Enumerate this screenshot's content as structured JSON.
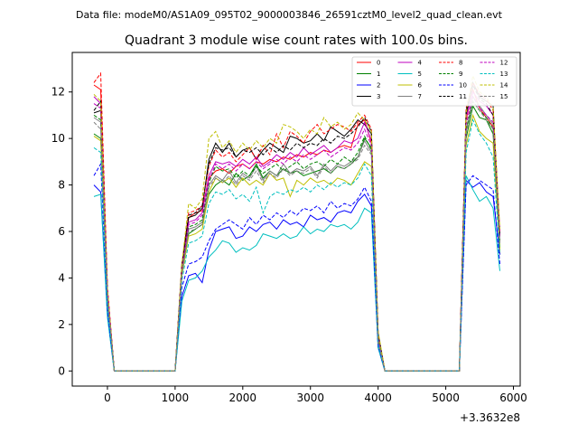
{
  "figure": {
    "suptitle": "Data file: modeM0/AS1A09_095T02_9000003846_26591cztM0_level2_quad_clean.evt"
  },
  "chart_data": {
    "type": "line",
    "title": "Quadrant 3 module wise count rates with 100.0s bins.",
    "xlabel": "",
    "ylabel": "",
    "x_offset_label": "+3.3632e8",
    "xlim": [
      -520,
      6100
    ],
    "ylim": [
      -0.65,
      13.7
    ],
    "x_ticks": [
      0,
      1000,
      2000,
      3000,
      4000,
      5000,
      6000
    ],
    "y_ticks": [
      0,
      2,
      4,
      6,
      8,
      10,
      12
    ],
    "grid": false,
    "legend_position": "top-right",
    "legend_columns": 4,
    "x": [
      -200,
      -100,
      0,
      100,
      1000,
      1100,
      1200,
      1300,
      1400,
      1500,
      1600,
      1700,
      1800,
      1900,
      2000,
      2100,
      2200,
      2300,
      2400,
      2500,
      2600,
      2700,
      2800,
      2900,
      3000,
      3100,
      3200,
      3300,
      3400,
      3500,
      3600,
      3700,
      3800,
      3900,
      4000,
      4100,
      5200,
      5300,
      5400,
      5500,
      5600,
      5700,
      5800
    ],
    "series": [
      {
        "name": "0",
        "color": "#ff0000",
        "dashed": false,
        "values": [
          12.3,
          12.1,
          3.5,
          0,
          0,
          4.5,
          6.6,
          6.8,
          6.9,
          8.3,
          8.6,
          8.7,
          8.5,
          8.8,
          8.9,
          8.7,
          9.0,
          8.9,
          9.1,
          9.0,
          9.2,
          9.1,
          9.3,
          9.2,
          9.4,
          9.3,
          9.5,
          9.4,
          9.6,
          9.7,
          9.6,
          10.6,
          10.8,
          9.8,
          1.5,
          0,
          0,
          10.8,
          12.1,
          11.3,
          10.9,
          10.5,
          5.0
        ]
      },
      {
        "name": "1",
        "color": "#008000",
        "dashed": false,
        "values": [
          10.2,
          10.0,
          3.0,
          0,
          0,
          4.2,
          5.9,
          6.1,
          6.3,
          7.6,
          8.0,
          8.2,
          8.0,
          8.5,
          8.2,
          8.4,
          8.9,
          8.3,
          8.6,
          8.4,
          8.7,
          8.5,
          8.6,
          8.4,
          8.5,
          8.6,
          8.7,
          8.5,
          8.8,
          8.7,
          8.9,
          9.2,
          10.0,
          9.6,
          1.2,
          0,
          0,
          10.0,
          11.4,
          10.9,
          10.8,
          10.2,
          5.3
        ]
      },
      {
        "name": "2",
        "color": "#0000ff",
        "dashed": false,
        "values": [
          8.0,
          7.7,
          2.4,
          0,
          0,
          3.2,
          4.1,
          4.2,
          3.8,
          5.2,
          6.0,
          6.1,
          6.2,
          5.7,
          5.8,
          6.2,
          6.0,
          6.3,
          6.4,
          6.1,
          6.5,
          6.3,
          6.4,
          6.2,
          6.7,
          6.5,
          6.6,
          6.4,
          6.8,
          6.9,
          6.8,
          7.3,
          7.6,
          7.1,
          1.0,
          0,
          0,
          8.2,
          7.9,
          8.1,
          7.7,
          7.5,
          5.0
        ]
      },
      {
        "name": "3",
        "color": "#000000",
        "dashed": false,
        "values": [
          11.1,
          11.2,
          3.4,
          0,
          0,
          4.6,
          6.6,
          6.7,
          7.0,
          9.1,
          9.8,
          9.4,
          9.8,
          9.2,
          9.5,
          9.6,
          9.1,
          9.5,
          9.8,
          9.6,
          9.4,
          10.1,
          10.0,
          9.8,
          9.9,
          10.2,
          9.9,
          10.5,
          10.3,
          10.1,
          10.4,
          10.8,
          10.6,
          10.2,
          1.6,
          0,
          0,
          11.0,
          12.4,
          11.8,
          11.6,
          11.4,
          5.8
        ]
      },
      {
        "name": "4",
        "color": "#bf00bf",
        "dashed": false,
        "values": [
          11.8,
          11.5,
          3.5,
          0,
          0,
          4.4,
          6.4,
          6.5,
          6.8,
          8.4,
          9.0,
          8.9,
          9.0,
          8.8,
          9.1,
          8.9,
          9.2,
          8.8,
          9.0,
          9.3,
          9.1,
          9.4,
          9.2,
          9.6,
          9.3,
          9.5,
          9.7,
          9.4,
          9.6,
          9.9,
          9.8,
          10.0,
          10.7,
          9.9,
          1.4,
          0,
          0,
          10.9,
          12.0,
          11.6,
          11.4,
          11.0,
          6.0
        ]
      },
      {
        "name": "5",
        "color": "#00bfbf",
        "dashed": false,
        "values": [
          7.5,
          7.6,
          2.3,
          0,
          0,
          3.0,
          3.9,
          4.0,
          4.3,
          4.9,
          5.2,
          5.6,
          5.5,
          5.1,
          5.3,
          5.2,
          5.4,
          5.9,
          5.8,
          5.7,
          5.9,
          5.7,
          5.8,
          6.2,
          5.9,
          6.1,
          6.0,
          6.3,
          6.2,
          6.3,
          6.1,
          6.4,
          7.0,
          6.8,
          1.0,
          0,
          0,
          8.4,
          7.8,
          7.3,
          7.5,
          7.0,
          4.3
        ]
      },
      {
        "name": "6",
        "color": "#bfbf00",
        "dashed": false,
        "values": [
          10.1,
          9.9,
          3.1,
          0,
          0,
          4.1,
          5.8,
          5.9,
          6.1,
          7.7,
          8.3,
          8.1,
          8.3,
          7.9,
          8.3,
          8.0,
          8.2,
          8.0,
          8.5,
          8.2,
          8.3,
          7.5,
          8.2,
          8.0,
          8.3,
          8.1,
          8.2,
          8.0,
          8.3,
          8.2,
          8.0,
          8.5,
          9.0,
          8.8,
          1.2,
          0,
          0,
          9.7,
          11.0,
          10.3,
          10.0,
          9.8,
          5.2
        ]
      },
      {
        "name": "7",
        "color": "#808080",
        "dashed": false,
        "values": [
          10.9,
          10.7,
          3.3,
          0,
          0,
          4.3,
          6.1,
          6.2,
          6.4,
          8.0,
          8.4,
          8.2,
          8.6,
          8.1,
          8.5,
          8.3,
          8.8,
          8.2,
          8.6,
          8.4,
          8.9,
          8.5,
          8.7,
          8.6,
          8.8,
          8.4,
          8.9,
          8.6,
          8.9,
          8.8,
          9.0,
          9.2,
          9.9,
          9.4,
          1.3,
          0,
          0,
          10.3,
          11.8,
          11.4,
          11.0,
          10.6,
          5.6
        ]
      },
      {
        "name": "8",
        "color": "#ff0000",
        "dashed": true,
        "values": [
          12.4,
          12.8,
          3.6,
          0,
          0,
          4.6,
          6.8,
          6.9,
          7.1,
          8.8,
          9.5,
          9.2,
          9.4,
          9.0,
          9.3,
          9.6,
          9.1,
          9.7,
          9.3,
          10.2,
          9.6,
          10.3,
          10.1,
          9.8,
          10.3,
          10.6,
          10.2,
          10.4,
          10.6,
          10.5,
          10.3,
          10.7,
          11.0,
          10.4,
          1.6,
          0,
          0,
          11.3,
          12.4,
          11.9,
          11.7,
          11.2,
          5.9
        ]
      },
      {
        "name": "9",
        "color": "#008000",
        "dashed": true,
        "values": [
          11.0,
          10.8,
          3.3,
          0,
          0,
          4.3,
          6.2,
          6.3,
          6.5,
          8.1,
          8.8,
          8.6,
          8.7,
          8.3,
          8.6,
          8.4,
          8.8,
          8.5,
          8.7,
          8.9,
          8.6,
          8.8,
          9.0,
          8.7,
          8.9,
          9.0,
          8.8,
          9.1,
          8.9,
          9.2,
          9.0,
          9.4,
          10.1,
          9.5,
          1.4,
          0,
          0,
          10.4,
          11.6,
          11.2,
          10.9,
          10.4,
          5.5
        ]
      },
      {
        "name": "10",
        "color": "#0000ff",
        "dashed": true,
        "values": [
          8.4,
          8.9,
          2.6,
          0,
          0,
          3.6,
          4.6,
          4.7,
          4.9,
          5.6,
          6.1,
          6.3,
          6.5,
          6.3,
          6.1,
          6.6,
          6.3,
          6.7,
          6.5,
          6.8,
          6.6,
          6.9,
          6.7,
          7.0,
          6.9,
          7.1,
          6.8,
          7.3,
          7.0,
          7.2,
          7.1,
          7.4,
          7.9,
          7.3,
          1.1,
          0,
          0,
          8.0,
          8.4,
          8.2,
          8.0,
          7.8,
          4.6
        ]
      },
      {
        "name": "11",
        "color": "#000000",
        "dashed": true,
        "values": [
          11.2,
          11.6,
          3.4,
          0,
          0,
          4.5,
          6.7,
          6.8,
          7.1,
          8.9,
          9.6,
          9.5,
          9.6,
          9.2,
          9.5,
          9.4,
          9.6,
          9.3,
          9.6,
          9.4,
          9.7,
          9.5,
          9.8,
          9.6,
          9.8,
          9.7,
          10.0,
          9.8,
          10.1,
          10.0,
          10.2,
          10.5,
          10.9,
          10.3,
          1.6,
          0,
          0,
          11.2,
          12.3,
          11.7,
          11.5,
          11.0,
          5.8
        ]
      },
      {
        "name": "12",
        "color": "#bf00bf",
        "dashed": true,
        "values": [
          11.5,
          11.3,
          3.4,
          0,
          0,
          4.3,
          6.3,
          6.4,
          6.7,
          8.2,
          8.9,
          8.7,
          8.9,
          8.6,
          8.9,
          8.7,
          9.0,
          8.7,
          8.9,
          9.1,
          8.9,
          9.2,
          9.0,
          9.3,
          9.1,
          9.3,
          9.5,
          9.2,
          9.4,
          9.6,
          9.5,
          9.8,
          10.4,
          9.7,
          1.4,
          0,
          0,
          10.6,
          11.8,
          11.3,
          11.0,
          10.7,
          5.7
        ]
      },
      {
        "name": "13",
        "color": "#00bfbf",
        "dashed": true,
        "values": [
          9.6,
          9.4,
          2.9,
          0,
          0,
          3.9,
          5.5,
          5.6,
          5.8,
          7.2,
          7.7,
          7.6,
          7.8,
          7.4,
          7.6,
          7.3,
          7.9,
          6.8,
          7.5,
          7.7,
          7.6,
          7.8,
          7.7,
          7.9,
          7.7,
          8.0,
          7.8,
          8.1,
          7.9,
          8.1,
          8.0,
          8.3,
          8.9,
          8.4,
          1.2,
          0,
          0,
          9.4,
          10.8,
          10.2,
          9.8,
          9.2,
          5.0
        ]
      },
      {
        "name": "14",
        "color": "#bfbf00",
        "dashed": true,
        "values": [
          11.9,
          11.6,
          3.5,
          0,
          0,
          4.6,
          7.2,
          7.0,
          7.4,
          10.0,
          10.3,
          9.6,
          9.9,
          9.4,
          9.8,
          9.5,
          9.9,
          9.6,
          10.0,
          9.8,
          10.6,
          10.5,
          10.3,
          10.0,
          10.4,
          10.2,
          10.9,
          10.5,
          10.7,
          10.4,
          10.6,
          11.1,
          10.8,
          10.3,
          1.7,
          0,
          0,
          11.1,
          12.7,
          12.0,
          11.8,
          11.3,
          6.1
        ]
      },
      {
        "name": "15",
        "color": "#808080",
        "dashed": true,
        "values": [
          10.7,
          10.4,
          3.2,
          0,
          0,
          4.2,
          6.0,
          6.1,
          6.3,
          7.9,
          8.3,
          8.1,
          8.4,
          8.0,
          8.4,
          8.2,
          8.6,
          8.1,
          8.5,
          8.3,
          8.7,
          8.4,
          8.6,
          8.5,
          8.7,
          8.3,
          8.8,
          8.5,
          8.8,
          8.7,
          8.9,
          9.1,
          9.7,
          9.3,
          1.3,
          0,
          0,
          10.2,
          11.6,
          11.2,
          10.8,
          10.4,
          5.5
        ]
      }
    ]
  }
}
